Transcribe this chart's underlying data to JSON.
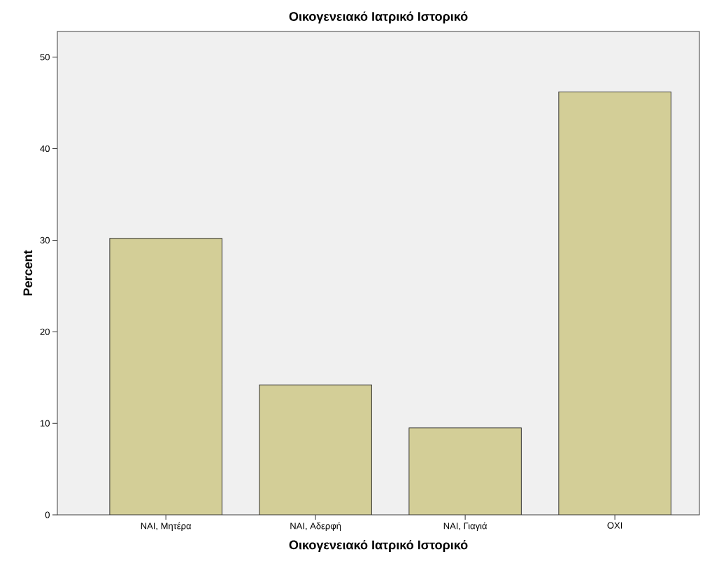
{
  "chart_data": {
    "type": "bar",
    "title": "Οικογενειακό Ιατρικό Ιστορικό",
    "xlabel": "Οικογενειακό Ιατρικό Ιστορικό",
    "ylabel": "Percent",
    "categories": [
      "ΝΑΙ, Μητέρα",
      "ΝΑΙ, Αδερφή",
      "ΝΑΙ, Γιαγιά",
      "ΟΧΙ"
    ],
    "values": [
      30.2,
      14.2,
      9.5,
      46.2
    ],
    "color": "#d3ce97",
    "ylim": [
      0,
      52.8
    ],
    "yticks": [
      0,
      10,
      20,
      30,
      40,
      50
    ]
  }
}
